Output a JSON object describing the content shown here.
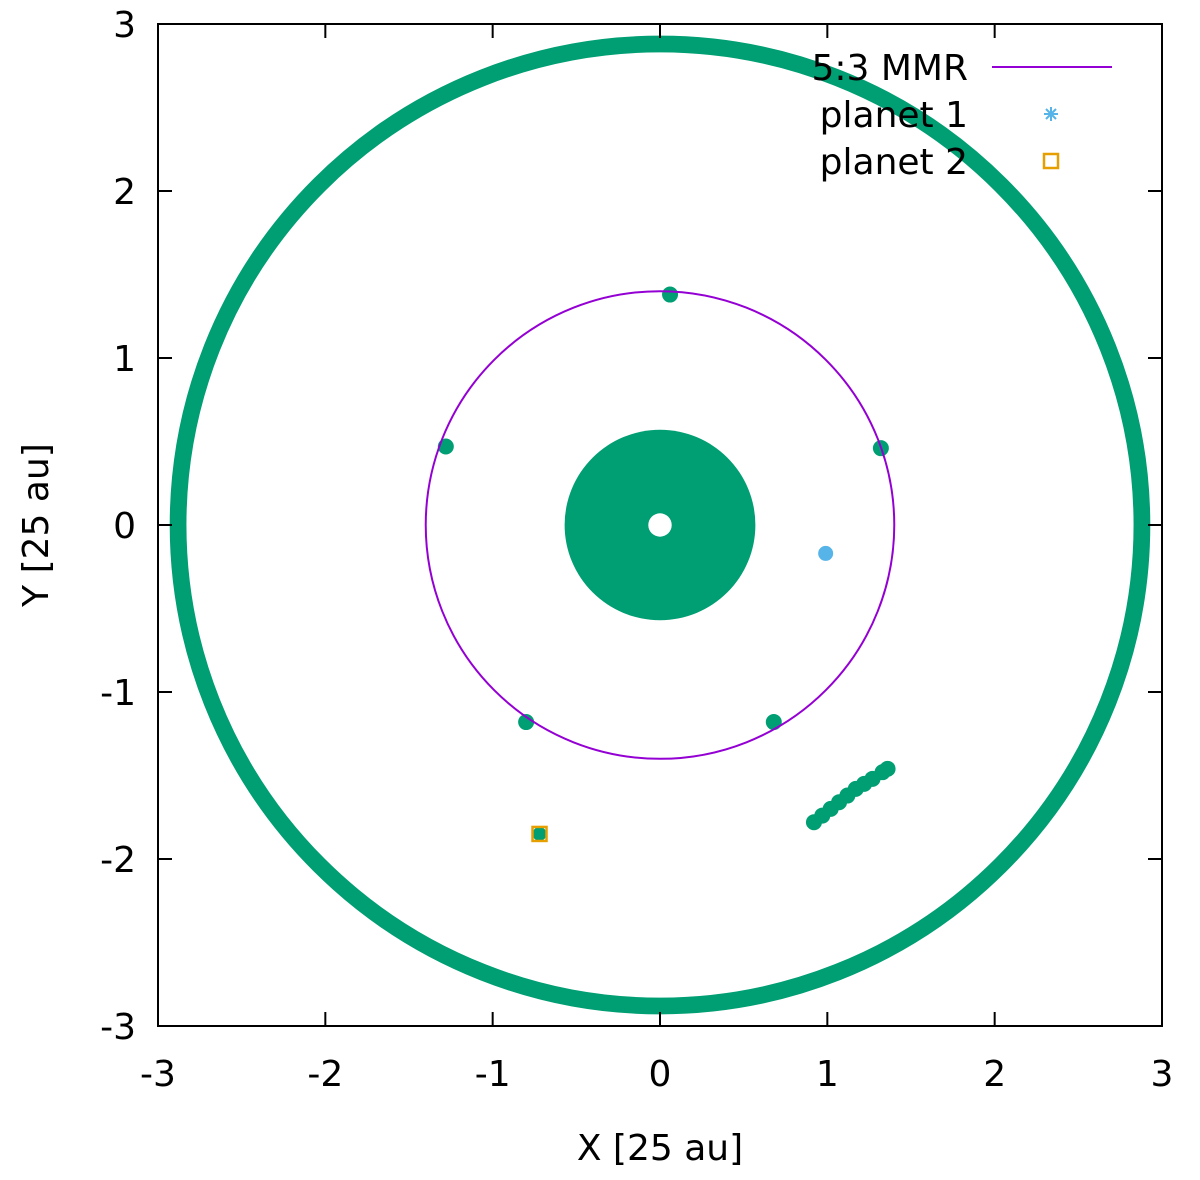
{
  "chart_data": {
    "type": "scatter",
    "title": "",
    "xlabel": "X [25 au]",
    "ylabel": "Y [25 au]",
    "xlim": [
      -3,
      3
    ],
    "ylim": [
      -3,
      3
    ],
    "xticks": [
      "-3",
      "-2",
      "-1",
      "0",
      "1",
      "2",
      "3"
    ],
    "yticks": [
      "-3",
      "-2",
      "-1",
      "0",
      "1",
      "2",
      "3"
    ],
    "grid": false,
    "legend_position": "top-right",
    "colors": {
      "disk": "#009e73",
      "mmr": "#9400d3",
      "planet1": "#56b4e9",
      "planet2": "#e69f00"
    },
    "series": [
      {
        "name": "5:3 MMR",
        "kind": "circle-line",
        "center": [
          0,
          0
        ],
        "radius": 1.4
      },
      {
        "name": "planet 1",
        "kind": "marker",
        "marker": "asterisk",
        "x": [
          0.99
        ],
        "y": [
          -0.17
        ]
      },
      {
        "name": "planet 2",
        "kind": "marker",
        "marker": "square",
        "x": [
          -0.72
        ],
        "y": [
          -1.85
        ]
      }
    ],
    "disk_particles": {
      "inner_disk": {
        "center": [
          0,
          0
        ],
        "r_outer": 0.57,
        "r_hole": 0.07
      },
      "outer_ring": {
        "center": [
          0,
          0
        ],
        "r_inner": 2.83,
        "r_outer": 2.93
      },
      "resonant_clumps": {
        "x": [
          0.06,
          1.32,
          -1.28,
          -0.8,
          0.68
        ],
        "y": [
          1.38,
          0.46,
          0.47,
          -1.18,
          -1.18
        ]
      },
      "stream": {
        "x": [
          0.92,
          0.97,
          1.02,
          1.07,
          1.12,
          1.17,
          1.22,
          1.27,
          1.33,
          1.36
        ],
        "y": [
          -1.78,
          -1.74,
          -1.7,
          -1.66,
          -1.62,
          -1.58,
          -1.55,
          -1.52,
          -1.48,
          -1.46
        ]
      },
      "planet2_companion": {
        "x": [
          -0.72
        ],
        "y": [
          -1.85
        ]
      }
    }
  }
}
